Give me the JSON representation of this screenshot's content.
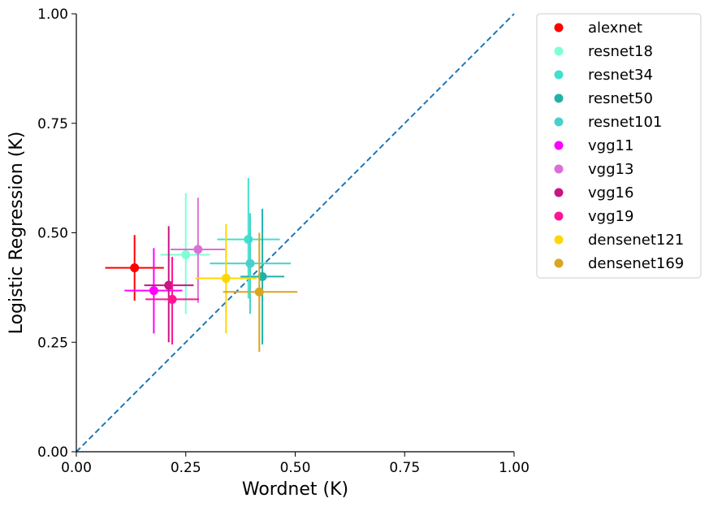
{
  "chart_data": {
    "type": "scatter",
    "title": "",
    "xlabel": "Wordnet (K)",
    "ylabel": "Logistic Regression (K)",
    "xlim": [
      0,
      1
    ],
    "ylim": [
      0,
      1
    ],
    "xticks": [
      "0.00",
      "0.25",
      "0.50",
      "0.75",
      "1.00"
    ],
    "yticks": [
      "0.00",
      "0.25",
      "0.50",
      "0.75",
      "1.00"
    ],
    "grid": false,
    "legend_position": "outside-right",
    "reference_line": {
      "style": "dashed",
      "color": "#1f77b4",
      "from": [
        0,
        0
      ],
      "to": [
        1,
        1
      ]
    },
    "series": [
      {
        "name": "alexnet",
        "color": "#ff0000",
        "x": 0.133,
        "y": 0.42,
        "x_err": [
          0.066,
          0.2
        ],
        "y_err": [
          0.345,
          0.495
        ]
      },
      {
        "name": "resnet18",
        "color": "#7fffd4",
        "x": 0.25,
        "y": 0.45,
        "x_err": [
          0.192,
          0.305
        ],
        "y_err": [
          0.315,
          0.59
        ]
      },
      {
        "name": "resnet34",
        "color": "#40e0d0",
        "x": 0.393,
        "y": 0.485,
        "x_err": [
          0.322,
          0.465
        ],
        "y_err": [
          0.35,
          0.625
        ]
      },
      {
        "name": "resnet50",
        "color": "#20b2aa",
        "x": 0.425,
        "y": 0.4,
        "x_err": [
          0.375,
          0.475
        ],
        "y_err": [
          0.245,
          0.555
        ]
      },
      {
        "name": "resnet101",
        "color": "#48d1cc",
        "x": 0.397,
        "y": 0.43,
        "x_err": [
          0.305,
          0.49
        ],
        "y_err": [
          0.315,
          0.545
        ]
      },
      {
        "name": "vgg11",
        "color": "#ff00ff",
        "x": 0.177,
        "y": 0.368,
        "x_err": [
          0.11,
          0.242
        ],
        "y_err": [
          0.27,
          0.465
        ]
      },
      {
        "name": "vgg13",
        "color": "#da70d6",
        "x": 0.278,
        "y": 0.462,
        "x_err": [
          0.215,
          0.34
        ],
        "y_err": [
          0.34,
          0.58
        ]
      },
      {
        "name": "vgg16",
        "color": "#c71585",
        "x": 0.211,
        "y": 0.38,
        "x_err": [
          0.155,
          0.268
        ],
        "y_err": [
          0.25,
          0.515
        ]
      },
      {
        "name": "vgg19",
        "color": "#ff1493",
        "x": 0.219,
        "y": 0.348,
        "x_err": [
          0.158,
          0.28
        ],
        "y_err": [
          0.245,
          0.445
        ]
      },
      {
        "name": "densenet121",
        "color": "#ffd700",
        "x": 0.342,
        "y": 0.396,
        "x_err": [
          0.272,
          0.412
        ],
        "y_err": [
          0.27,
          0.52
        ]
      },
      {
        "name": "densenet169",
        "color": "#daa520",
        "x": 0.418,
        "y": 0.365,
        "x_err": [
          0.335,
          0.505
        ],
        "y_err": [
          0.228,
          0.5
        ]
      }
    ]
  }
}
